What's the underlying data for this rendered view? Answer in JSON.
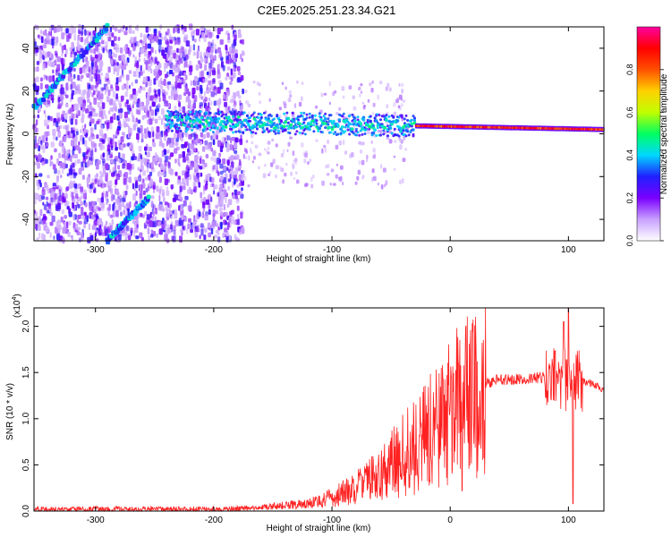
{
  "title": "C2E5.2025.251.23.34.G21",
  "chart_data": [
    {
      "type": "heatmap",
      "name": "spectrogram",
      "xlabel": "Height of straight line (km)",
      "ylabel": "Frequency (Hz)",
      "xlim": [
        -352,
        130
      ],
      "ylim": [
        -50,
        50
      ],
      "xticks": [
        -300,
        -200,
        -100,
        0,
        100
      ],
      "yticks": [
        -40,
        -20,
        0,
        20,
        40
      ],
      "colorbar": {
        "label": "Normalized spectral amplitude",
        "range": [
          0,
          1
        ],
        "ticks": [
          "0.0",
          "0.2",
          "0.4",
          "0.6",
          "0.8"
        ],
        "colors": [
          "#ffffff",
          "#c8a0ff",
          "#7a00ff",
          "#2020ff",
          "#00d8ff",
          "#00ff60",
          "#c0ff00",
          "#ffd000",
          "#ff5000",
          "#ff0000",
          "#ff00a0"
        ]
      },
      "features": [
        {
          "name": "main-carrier",
          "x_start": -240,
          "x_end": 130,
          "freq_hz_start": 6,
          "freq_hz_end": 2
        },
        {
          "name": "upper-diagonal",
          "x_start": -352,
          "x_end": -290,
          "freq_hz_start": 12,
          "freq_hz_end": 50
        },
        {
          "name": "lower-diagonal",
          "x_start": -290,
          "x_end": -255,
          "freq_hz_start": -50,
          "freq_hz_end": -30
        }
      ]
    },
    {
      "type": "line",
      "name": "snr",
      "xlabel": "Height of straight line (km)",
      "ylabel": "SNR (10 * v/v)",
      "exponent": "(x10",
      "exponent_power": "4",
      "exponent_close": ")",
      "xlim": [
        -352,
        130
      ],
      "ylim": [
        0,
        2.2
      ],
      "xticks": [
        -300,
        -200,
        -100,
        0,
        100
      ],
      "yticks": [
        "0.0",
        "0.5",
        "1.0",
        "1.5",
        "2.0"
      ],
      "series": [
        {
          "name": "SNR",
          "color": "#ff2020",
          "x": [
            -352,
            -300,
            -250,
            -200,
            -170,
            -150,
            -120,
            -100,
            -80,
            -60,
            -45,
            -35,
            -20,
            -10,
            0,
            10,
            20,
            30,
            40,
            60,
            80,
            90,
            100,
            110,
            120,
            130
          ],
          "y": [
            0.02,
            0.02,
            0.02,
            0.02,
            0.03,
            0.05,
            0.08,
            0.14,
            0.25,
            0.4,
            0.55,
            0.65,
            0.8,
            0.95,
            1.05,
            1.2,
            1.32,
            1.38,
            1.42,
            1.43,
            1.45,
            1.42,
            1.4,
            1.42,
            1.38,
            1.32
          ]
        }
      ],
      "annotations": [
        {
          "x": 7,
          "y": 1.6,
          "label": "spike"
        },
        {
          "x": 100,
          "y": 2.2,
          "label": "spike"
        },
        {
          "x": 104,
          "y": 0.08,
          "label": "dip"
        }
      ]
    }
  ]
}
